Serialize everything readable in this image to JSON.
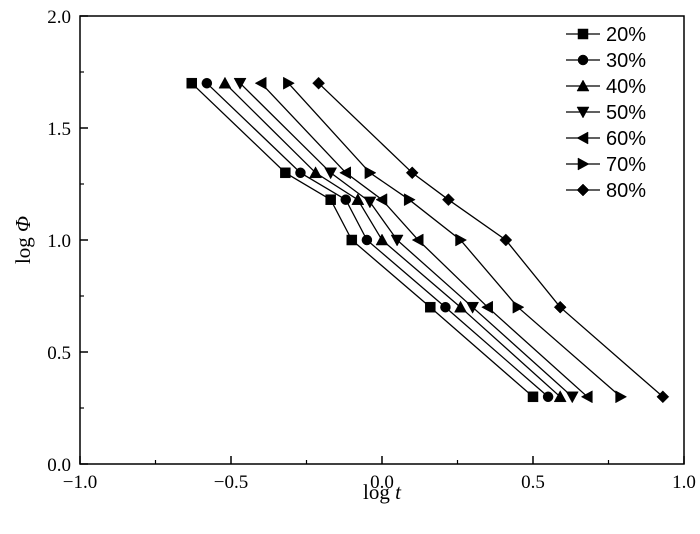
{
  "chart_data": {
    "type": "line",
    "xlabel_prefix": "log",
    "xlabel_var": "t",
    "ylabel_prefix": "log",
    "ylabel_var": "Φ",
    "xlim": [
      -1.0,
      1.0
    ],
    "ylim": [
      0.0,
      2.0
    ],
    "x_ticks": [
      -1.0,
      -0.5,
      0.0,
      0.5,
      1.0
    ],
    "x_tick_labels": [
      "−1.0",
      "−0.5",
      "0.0",
      "0.5",
      "1.0"
    ],
    "y_ticks": [
      0.0,
      0.5,
      1.0,
      1.5,
      2.0
    ],
    "y_tick_labels": [
      "0.0",
      "0.5",
      "1.0",
      "1.5",
      "2.0"
    ],
    "grid": false,
    "legend_position": "top-right",
    "series": [
      {
        "name": "20%",
        "marker": "square",
        "points": [
          [
            -0.63,
            1.7
          ],
          [
            -0.32,
            1.3
          ],
          [
            -0.17,
            1.18
          ],
          [
            -0.1,
            1.0
          ],
          [
            0.16,
            0.7
          ],
          [
            0.5,
            0.3
          ]
        ]
      },
      {
        "name": "30%",
        "marker": "circle",
        "points": [
          [
            -0.58,
            1.7
          ],
          [
            -0.27,
            1.3
          ],
          [
            -0.12,
            1.18
          ],
          [
            -0.05,
            1.0
          ],
          [
            0.21,
            0.7
          ],
          [
            0.55,
            0.3
          ]
        ]
      },
      {
        "name": "40%",
        "marker": "triangle-up",
        "points": [
          [
            -0.52,
            1.7
          ],
          [
            -0.22,
            1.3
          ],
          [
            -0.08,
            1.18
          ],
          [
            0.0,
            1.0
          ],
          [
            0.26,
            0.7
          ],
          [
            0.59,
            0.3
          ]
        ]
      },
      {
        "name": "50%",
        "marker": "triangle-down",
        "points": [
          [
            -0.47,
            1.7
          ],
          [
            -0.17,
            1.3
          ],
          [
            -0.04,
            1.17
          ],
          [
            0.05,
            1.0
          ],
          [
            0.3,
            0.7
          ],
          [
            0.63,
            0.3
          ]
        ]
      },
      {
        "name": "60%",
        "marker": "triangle-left",
        "points": [
          [
            -0.4,
            1.7
          ],
          [
            -0.12,
            1.3
          ],
          [
            0.0,
            1.18
          ],
          [
            0.12,
            1.0
          ],
          [
            0.35,
            0.7
          ],
          [
            0.68,
            0.3
          ]
        ]
      },
      {
        "name": "70%",
        "marker": "triangle-right",
        "points": [
          [
            -0.31,
            1.7
          ],
          [
            -0.04,
            1.3
          ],
          [
            0.09,
            1.18
          ],
          [
            0.26,
            1.0
          ],
          [
            0.45,
            0.7
          ],
          [
            0.79,
            0.3
          ]
        ]
      },
      {
        "name": "80%",
        "marker": "diamond",
        "points": [
          [
            -0.21,
            1.7
          ],
          [
            0.1,
            1.3
          ],
          [
            0.22,
            1.18
          ],
          [
            0.41,
            1.0
          ],
          [
            0.59,
            0.7
          ],
          [
            0.93,
            0.3
          ]
        ]
      }
    ]
  }
}
